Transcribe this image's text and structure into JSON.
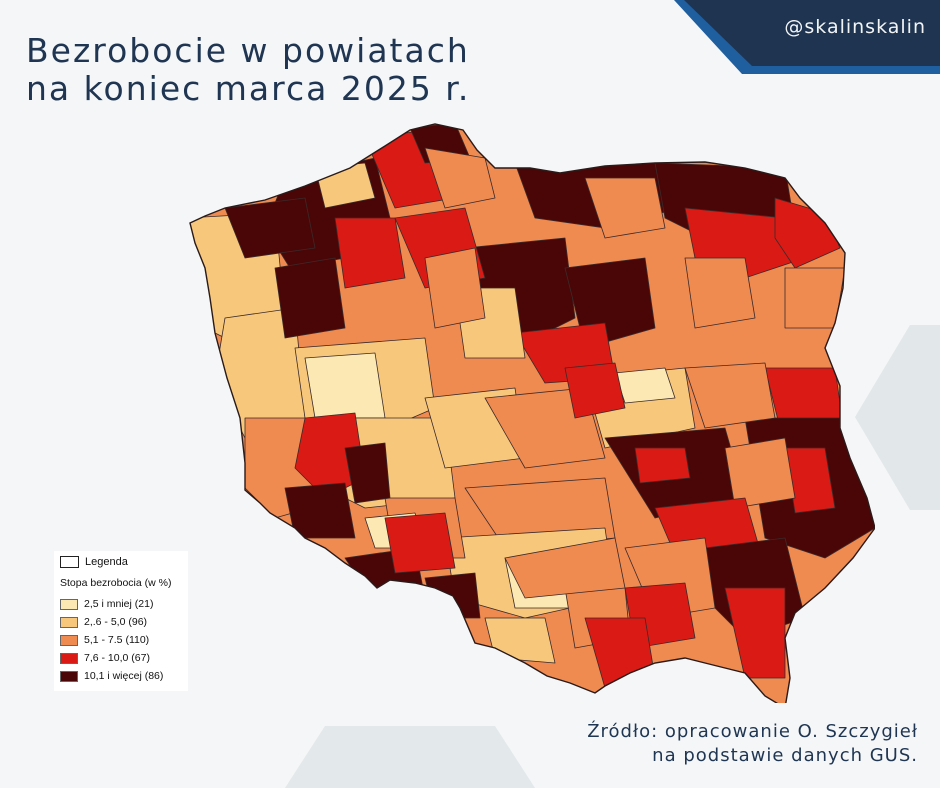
{
  "title": {
    "line1": "Bezrobocie w powiatach",
    "line2": "na koniec marca 2025 r."
  },
  "handle": "@skalinskalin",
  "colors": {
    "background": "#f4f6f7",
    "title_text": "#1f3552",
    "banner_dark": "#1e3450",
    "banner_accent": "#1f5fa0",
    "map_border": "#3a2a2a"
  },
  "legend": {
    "title": "Legenda",
    "subtitle": "Stopa bezrobocia (w %)",
    "items": [
      {
        "label": "2,5 i mniej (21)",
        "color": "#fbe8b2"
      },
      {
        "label": "2,.6 - 5,0 (96)",
        "color": "#f7c77c"
      },
      {
        "label": "5,1 - 7.5 (110)",
        "color": "#ef8a50"
      },
      {
        "label": "7,6 - 10,0 (67)",
        "color": "#d91a15"
      },
      {
        "label": "10,1 i więcej (86)",
        "color": "#4a0606"
      }
    ]
  },
  "source": {
    "line1": "Źródło: opracowanie O. Szczygieł",
    "line2": "na podstawie danych GUS."
  }
}
